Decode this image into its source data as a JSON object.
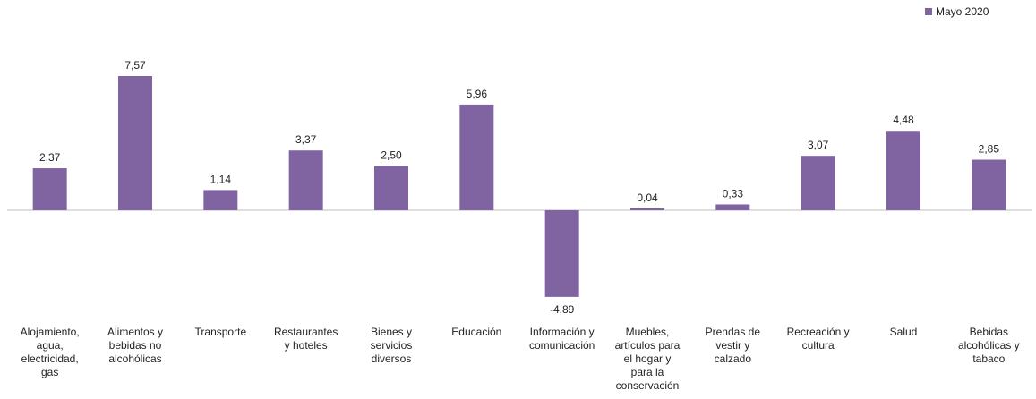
{
  "chart_data": {
    "type": "bar",
    "categories": [
      "Alojamiento, agua, electricidad, gas",
      "Alimentos y bebidas no alcohólicas",
      "Transporte",
      "Restaurantes y hoteles",
      "Bienes y servicios diversos",
      "Educación",
      "Información y comunicación",
      "Muebles, artículos para el hogar y para la conservación",
      "Prendas de vestir y calzado",
      "Recreación y cultura",
      "Salud",
      "Bebidas alcohólicas y tabaco"
    ],
    "category_lines": [
      [
        "Alojamiento,",
        "agua,",
        "electricidad,",
        "gas"
      ],
      [
        "Alimentos y",
        "bebidas no",
        "alcohólicas"
      ],
      [
        "Transporte"
      ],
      [
        "Restaurantes",
        "y hoteles"
      ],
      [
        "Bienes y",
        "servicios",
        "diversos"
      ],
      [
        "Educación"
      ],
      [
        "Información y",
        "comunicación"
      ],
      [
        "Muebles,",
        "artículos para",
        "el hogar y",
        "para la",
        "conservación"
      ],
      [
        "Prendas de",
        "vestir y",
        "calzado"
      ],
      [
        "Recreación y",
        "cultura"
      ],
      [
        "Salud"
      ],
      [
        "Bebidas",
        "alcohólicas y",
        "tabaco"
      ]
    ],
    "series": [
      {
        "name": "Mayo 2020",
        "values": [
          2.37,
          7.57,
          1.14,
          3.37,
          2.5,
          5.96,
          -4.89,
          0.04,
          0.33,
          3.07,
          4.48,
          2.85
        ],
        "labels": [
          "2,37",
          "7,57",
          "1,14",
          "3,37",
          "2,50",
          "5,96",
          "-4,89",
          "0,04",
          "0,33",
          "3,07",
          "4,48",
          "2,85"
        ],
        "color": "#8064a2"
      }
    ],
    "ylim": [
      -4.89,
      7.57
    ],
    "grid": false,
    "legend": "top-right",
    "title": "",
    "xlabel": "",
    "ylabel": ""
  }
}
